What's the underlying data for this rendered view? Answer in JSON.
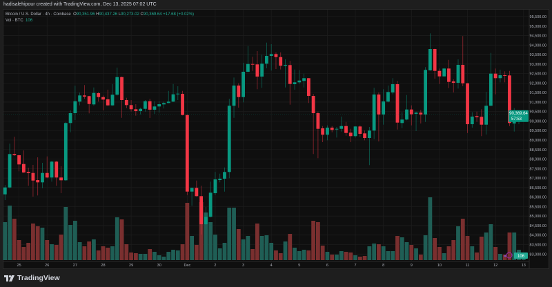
{
  "header": {
    "credit": "hadisalehipour created with TradingView.com, Dec 13, 2025 07:02 UTC"
  },
  "legend": {
    "symbol": "Bitcoin / U.S. Dollar · 4h · Coinbase",
    "open_label": "O",
    "open": "90,351.96",
    "high_label": "H",
    "high": "90,437.26",
    "low_label": "L",
    "low": "90,273.02",
    "close_label": "C",
    "close": "90,369.64",
    "change": "+17.68 (+0.02%)",
    "volume_label": "Vol · BTC",
    "volume": "106"
  },
  "price_tag": {
    "price": "90,369.64",
    "countdown": "57:53"
  },
  "volume_tag": "106",
  "footer": {
    "logo_text": "TradingView"
  },
  "colors": {
    "up": "#089981",
    "down": "#f23645",
    "up_volume": "#1f5e55",
    "down_volume": "#7a2f2f",
    "background": "#0f0f0f",
    "frame": "#1e1e1e"
  },
  "chart_data": {
    "type": "candlestick",
    "title": "Bitcoin / U.S. Dollar · 4h · Coinbase",
    "interval": "4h",
    "ylim": [
      82800,
      95700
    ],
    "y_ticks": [
      "95,500.00",
      "95,000.00",
      "94,500.00",
      "94,000.00",
      "93,500.00",
      "93,000.00",
      "92,500.00",
      "92,000.00",
      "91,500.00",
      "91,000.00",
      "90,500.00",
      "90,000.00",
      "89,500.00",
      "89,000.00",
      "88,500.00",
      "88,000.00",
      "87,500.00",
      "87,000.00",
      "86,500.00",
      "86,000.00",
      "85,500.00",
      "85,000.00",
      "84,500.00",
      "84,000.00",
      "83,500.00",
      "83,000.00"
    ],
    "y_tick_values": [
      95500,
      95000,
      94500,
      94000,
      93500,
      93000,
      92500,
      92000,
      91500,
      91000,
      90500,
      90000,
      89500,
      89000,
      88500,
      88000,
      87500,
      87000,
      86500,
      86000,
      85500,
      85000,
      84500,
      84000,
      83500,
      83000
    ],
    "x_ticks": [
      "25",
      "26",
      "27",
      "28",
      "29",
      "30",
      "Dec",
      "2",
      "3",
      "4",
      "5",
      "6",
      "7",
      "8",
      "9",
      "10",
      "11",
      "12",
      "13"
    ],
    "x_tick_first_candle": 3,
    "candles_per_day": 6,
    "grid": true,
    "ohlc": [
      [
        86143,
        86629,
        85841,
        86506
      ],
      [
        86506,
        88808,
        86450,
        88263
      ],
      [
        88263,
        89171,
        88165,
        88201
      ],
      [
        88201,
        88230,
        87355,
        87718
      ],
      [
        87740,
        88455,
        87268,
        87293
      ],
      [
        87319,
        87548,
        86593,
        87257
      ],
      [
        87268,
        87693,
        86023,
        86869
      ],
      [
        86894,
        88092,
        86084,
        86774
      ],
      [
        86774,
        87802,
        86469,
        87268
      ],
      [
        87268,
        88140,
        86992,
        87029
      ],
      [
        87029,
        87900,
        86810,
        87864
      ],
      [
        87864,
        87900,
        86593,
        87029
      ],
      [
        87029,
        87620,
        86204,
        86883
      ],
      [
        86883,
        89950,
        86850,
        89897
      ],
      [
        89897,
        90561,
        89410,
        90416
      ],
      [
        90416,
        91858,
        90053,
        91044
      ],
      [
        91023,
        91495,
        90826,
        91349
      ],
      [
        91349,
        91894,
        91168,
        91288
      ],
      [
        91313,
        91330,
        90405,
        90899
      ],
      [
        90877,
        91771,
        90805,
        91480
      ],
      [
        91469,
        91531,
        91023,
        91262
      ],
      [
        91262,
        91349,
        90561,
        91131
      ],
      [
        91142,
        91651,
        90800,
        90826
      ],
      [
        90826,
        91952,
        90800,
        91386
      ],
      [
        91386,
        92813,
        91340,
        92315
      ],
      [
        92315,
        92340,
        90173,
        91106
      ],
      [
        91106,
        91226,
        90681,
        90841
      ],
      [
        90841,
        91106,
        90500,
        90623
      ],
      [
        90623,
        90888,
        90282,
        90525
      ],
      [
        90525,
        90707,
        90344,
        90645
      ],
      [
        90645,
        91106,
        90500,
        91044
      ],
      [
        91044,
        91168,
        90162,
        90598
      ],
      [
        90598,
        91044,
        90380,
        90768
      ],
      [
        90768,
        91044,
        90442,
        90888
      ],
      [
        90877,
        91023,
        90660,
        90950
      ],
      [
        90950,
        91589,
        90940,
        91023
      ],
      [
        91023,
        91952,
        91000,
        91407
      ],
      [
        91407,
        91832,
        91106,
        91444
      ],
      [
        91433,
        91589,
        90300,
        90318
      ],
      [
        90318,
        90330,
        86106,
        86288
      ],
      [
        86288,
        86500,
        85540,
        86484
      ],
      [
        86484,
        86869,
        86030,
        86048
      ],
      [
        86048,
        86593,
        84026,
        84570
      ],
      [
        84570,
        85478,
        84540,
        84959
      ],
      [
        84959,
        86810,
        84930,
        86230
      ],
      [
        86204,
        87319,
        86106,
        86931
      ],
      [
        86894,
        87232,
        86774,
        86967
      ],
      [
        86967,
        87559,
        86288,
        87319
      ],
      [
        87319,
        91168,
        86992,
        90805
      ],
      [
        90805,
        92293,
        90173,
        91869
      ],
      [
        91869,
        91988,
        90707,
        91262
      ],
      [
        91262,
        93067,
        90986,
        92595
      ],
      [
        92595,
        93949,
        92580,
        93005
      ],
      [
        93005,
        93383,
        92642,
        92969
      ],
      [
        92983,
        93684,
        91676,
        92341
      ],
      [
        92341,
        93492,
        91749,
        93020
      ],
      [
        93020,
        94131,
        92776,
        93430
      ],
      [
        93430,
        94047,
        92656,
        93528
      ],
      [
        93528,
        93611,
        92740,
        93368
      ],
      [
        93368,
        93611,
        92715,
        92911
      ],
      [
        92911,
        93248,
        91771,
        92958
      ],
      [
        92947,
        93165,
        90863,
        91952
      ],
      [
        91941,
        92715,
        91651,
        92039
      ],
      [
        92039,
        92678,
        91952,
        92134
      ],
      [
        92112,
        92497,
        91771,
        92257
      ],
      [
        92257,
        92270,
        90950,
        91324
      ],
      [
        91324,
        91433,
        88263,
        90416
      ],
      [
        90416,
        90500,
        88045,
        89592
      ],
      [
        89617,
        89737,
        88891,
        89280
      ],
      [
        89280,
        89773,
        88989,
        89654
      ],
      [
        89654,
        89737,
        89410,
        89534
      ],
      [
        89556,
        89690,
        89134,
        89592
      ],
      [
        89592,
        90235,
        89447,
        89737
      ],
      [
        89737,
        89955,
        89229,
        89374
      ],
      [
        89389,
        89592,
        88891,
        89207
      ],
      [
        89207,
        89730,
        89134,
        89715
      ],
      [
        89715,
        89773,
        89171,
        89327
      ],
      [
        89352,
        89498,
        88989,
        89109
      ],
      [
        89109,
        89690,
        87682,
        89498
      ],
      [
        89498,
        91749,
        89047,
        91397
      ],
      [
        91397,
        91505,
        88928,
        90344
      ],
      [
        90344,
        91676,
        89810,
        91033
      ],
      [
        91023,
        91869,
        90986,
        91531
      ],
      [
        91505,
        92257,
        91407,
        91941
      ],
      [
        91941,
        92112,
        89556,
        89919
      ],
      [
        89897,
        90463,
        89628,
        90079
      ],
      [
        90079,
        91371,
        90042,
        90609
      ],
      [
        90609,
        90826,
        89773,
        90354
      ],
      [
        90380,
        90500,
        89472,
        90442
      ],
      [
        90442,
        90587,
        89872,
        90344
      ],
      [
        90344,
        92838,
        89955,
        92693
      ],
      [
        92667,
        94617,
        92650,
        93793
      ],
      [
        93793,
        93810,
        92231,
        92642
      ],
      [
        92642,
        92765,
        91952,
        92352
      ],
      [
        92352,
        92802,
        92340,
        92765
      ],
      [
        92765,
        93223,
        91734,
        92061
      ],
      [
        92086,
        92195,
        91505,
        92014
      ],
      [
        92014,
        93248,
        91712,
        92958
      ],
      [
        92958,
        94472,
        91832,
        91988
      ],
      [
        91988,
        92000,
        89374,
        89835
      ],
      [
        89835,
        90463,
        89654,
        90235
      ],
      [
        90260,
        90500,
        89955,
        90198
      ],
      [
        90224,
        90623,
        89207,
        89810
      ],
      [
        89810,
        91531,
        89291,
        90805
      ],
      [
        90805,
        93586,
        90790,
        92497
      ],
      [
        92497,
        92765,
        91407,
        92257
      ],
      [
        92257,
        92704,
        92039,
        92413
      ],
      [
        92413,
        92620,
        92039,
        92377
      ],
      [
        92402,
        92642,
        89737,
        89897
      ],
      [
        89872,
        90681,
        89447,
        90162
      ],
      [
        90162,
        90380,
        89835,
        90235
      ],
      [
        90351.96,
        90437.26,
        90273.02,
        90369.64
      ]
    ],
    "volume_unit": "BTC",
    "volume": [
      1155,
      1659,
      1260,
      609,
      399,
      525,
      1113,
      1029,
      987,
      609,
      483,
      462,
      777,
      1617,
      1071,
      1197,
      546,
      420,
      567,
      630,
      294,
      420,
      378,
      420,
      1302,
      1239,
      483,
      231,
      210,
      189,
      189,
      336,
      252,
      147,
      105,
      252,
      315,
      294,
      483,
      1743,
      735,
      462,
      1764,
      1449,
      1155,
      777,
      357,
      525,
      1596,
      1596,
      945,
      630,
      735,
      336,
      1113,
      735,
      756,
      525,
      294,
      210,
      567,
      798,
      378,
      273,
      315,
      294,
      1197,
      1155,
      441,
      252,
      168,
      168,
      273,
      252,
      231,
      147,
      105,
      126,
      420,
      504,
      483,
      420,
      273,
      273,
      735,
      693,
      546,
      462,
      357,
      168,
      756,
      1911,
      672,
      399,
      210,
      420,
      609,
      1029,
      1260,
      735,
      420,
      231,
      714,
      840,
      1092,
      399,
      189,
      168,
      840,
      840,
      315,
      106
    ]
  }
}
